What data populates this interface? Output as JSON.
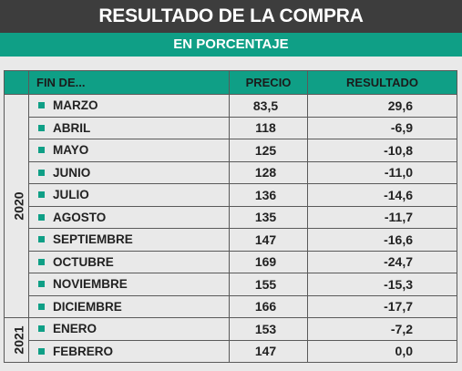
{
  "title": "RESULTADO DE LA COMPRA",
  "subtitle": "EN PORCENTAJE",
  "columns": {
    "fin": "FIN DE...",
    "precio": "PRECIO",
    "resultado": "RESULTADO"
  },
  "years": [
    {
      "year": "2020",
      "rows": [
        {
          "month": "MARZO",
          "precio": "83,5",
          "resultado": "29,6"
        },
        {
          "month": "ABRIL",
          "precio": "118",
          "resultado": "-6,9"
        },
        {
          "month": "MAYO",
          "precio": "125",
          "resultado": "-10,8"
        },
        {
          "month": "JUNIO",
          "precio": "128",
          "resultado": "-11,0"
        },
        {
          "month": "JULIO",
          "precio": "136",
          "resultado": "-14,6"
        },
        {
          "month": "AGOSTO",
          "precio": "135",
          "resultado": "-11,7"
        },
        {
          "month": "SEPTIEMBRE",
          "precio": "147",
          "resultado": "-16,6"
        },
        {
          "month": "OCTUBRE",
          "precio": "169",
          "resultado": "-24,7"
        },
        {
          "month": "NOVIEMBRE",
          "precio": "155",
          "resultado": "-15,3"
        },
        {
          "month": "DICIEMBRE",
          "precio": "166",
          "resultado": "-17,7"
        }
      ]
    },
    {
      "year": "2021",
      "rows": [
        {
          "month": "ENERO",
          "precio": "153",
          "resultado": "-7,2"
        },
        {
          "month": "FEBRERO",
          "precio": "147",
          "resultado": "0,0"
        }
      ]
    }
  ],
  "colors": {
    "accent": "#0f9f86",
    "header_dark": "#3d3d3d",
    "background": "#e9e9e9"
  }
}
